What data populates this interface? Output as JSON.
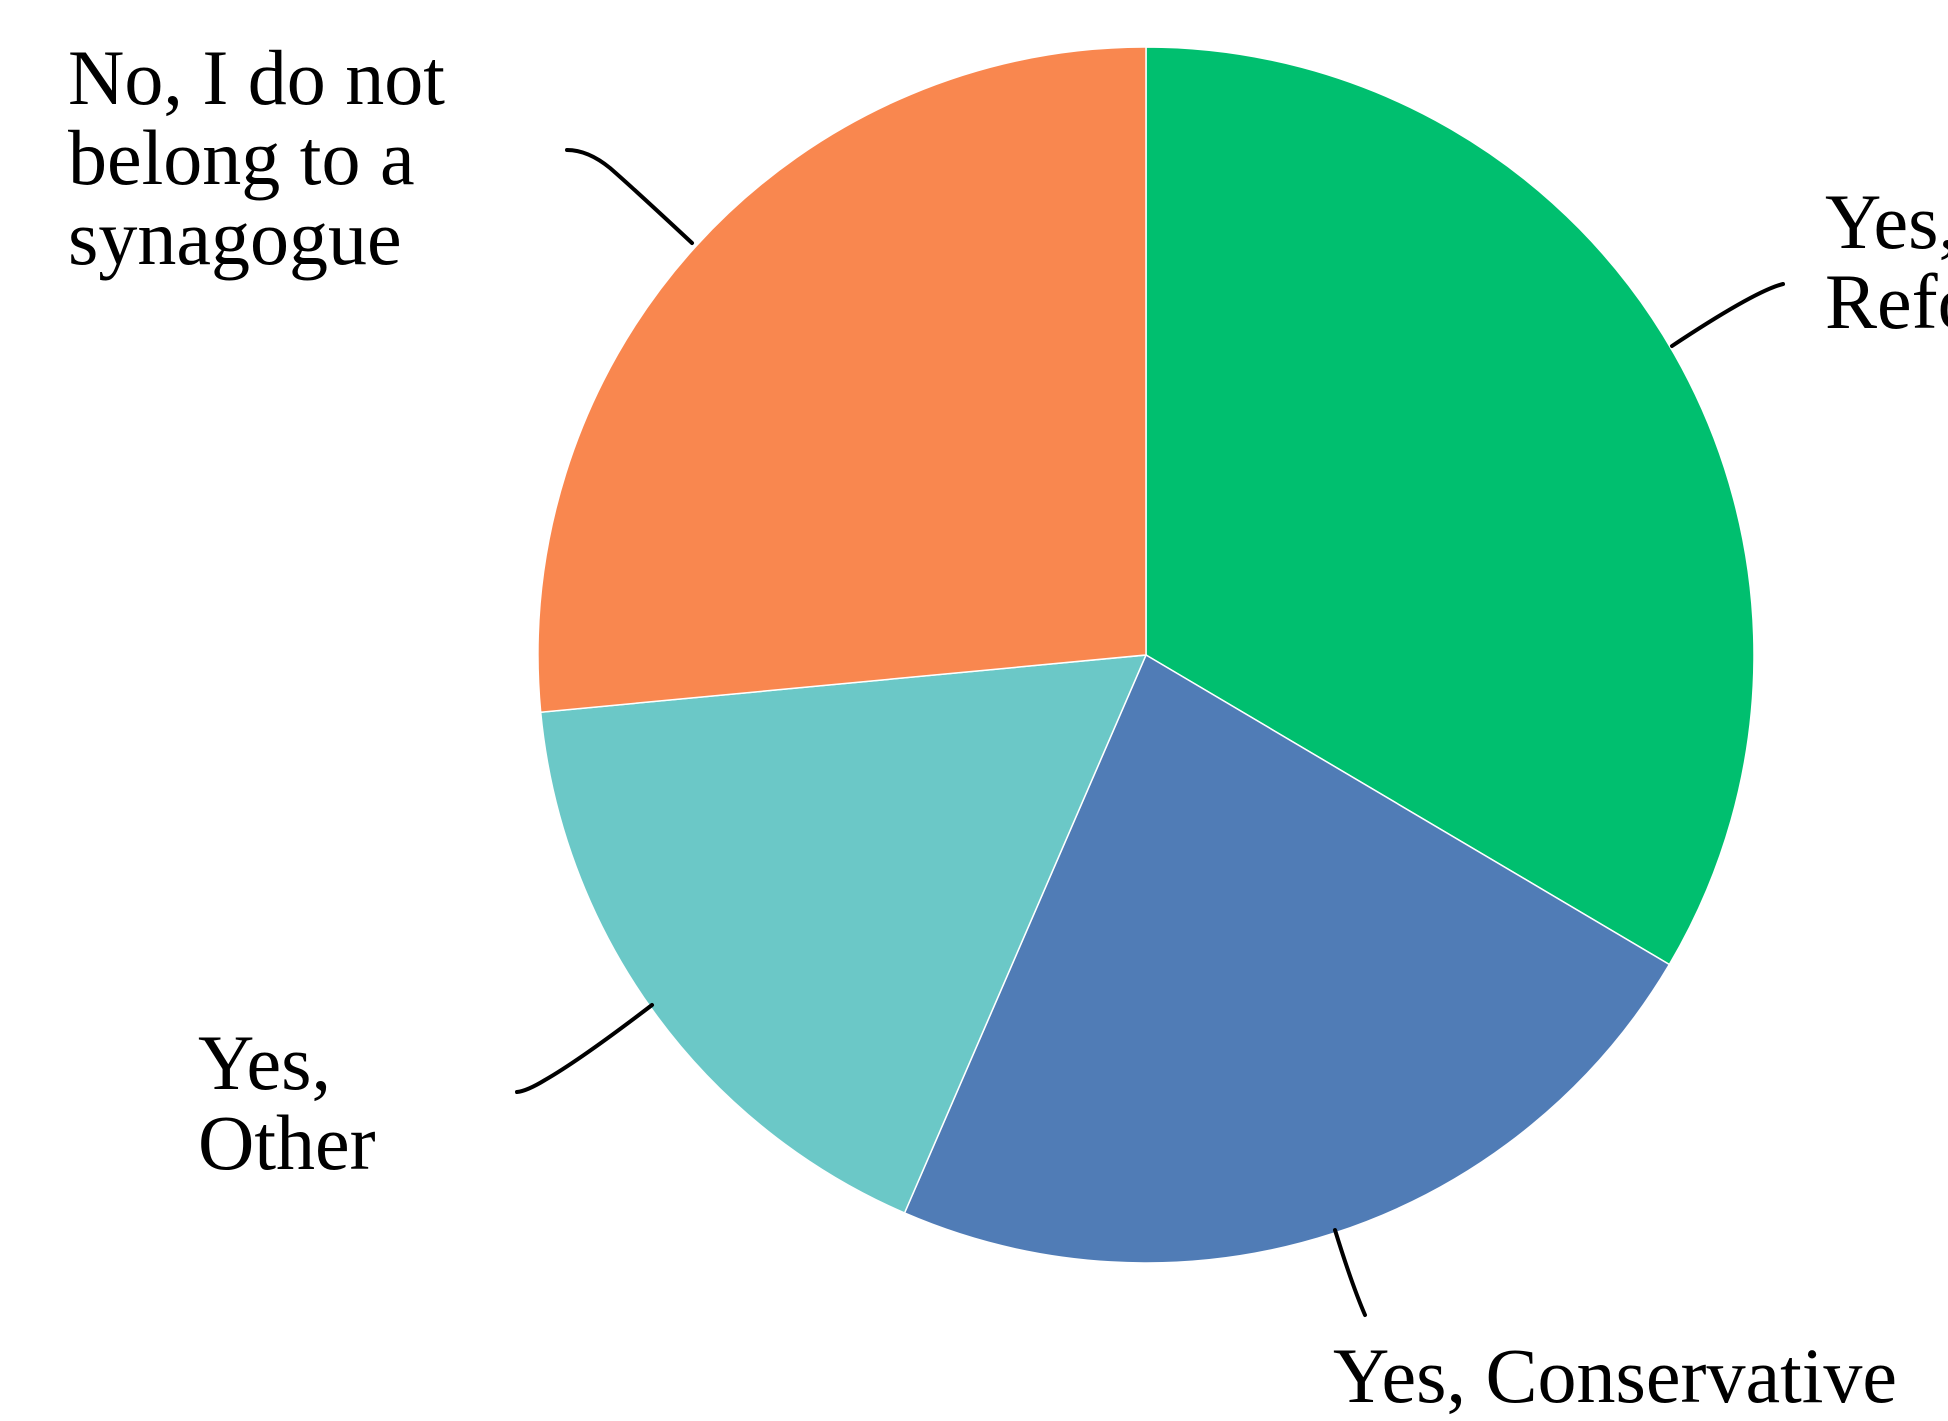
{
  "chart_data": {
    "type": "pie",
    "title": "",
    "start_angle_deg": 0,
    "direction": "clockwise",
    "slices": [
      {
        "label": "Yes, Reform",
        "label_lines": [
          "Yes,",
          "Reform"
        ],
        "value": 33.5,
        "color": "#00BF6F"
      },
      {
        "label": "Yes, Conservative",
        "label_lines": [
          "Yes, Conservative"
        ],
        "value": 23.0,
        "color": "#507CB6"
      },
      {
        "label": "Yes, Other",
        "label_lines": [
          "Yes,",
          "Other"
        ],
        "value": 17.0,
        "color": "#6BC8C7"
      },
      {
        "label": "No, I do not belong to a synagogue",
        "label_lines": [
          "No, I do not",
          "belong to a",
          "synagogue"
        ],
        "value": 26.5,
        "color": "#F9874F"
      }
    ]
  }
}
